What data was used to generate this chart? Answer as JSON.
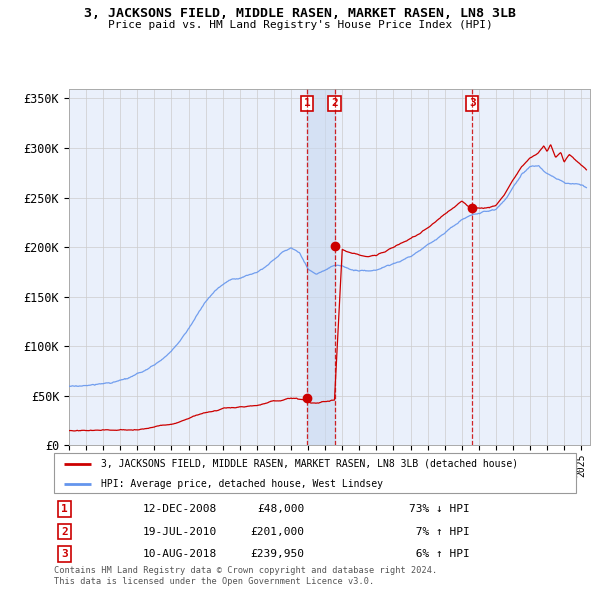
{
  "title": "3, JACKSONS FIELD, MIDDLE RASEN, MARKET RASEN, LN8 3LB",
  "subtitle": "Price paid vs. HM Land Registry's House Price Index (HPI)",
  "legend_label_red": "3, JACKSONS FIELD, MIDDLE RASEN, MARKET RASEN, LN8 3LB (detached house)",
  "legend_label_blue": "HPI: Average price, detached house, West Lindsey",
  "footer1": "Contains HM Land Registry data © Crown copyright and database right 2024.",
  "footer2": "This data is licensed under the Open Government Licence v3.0.",
  "transactions": [
    {
      "num": "1",
      "date": "12-DEC-2008",
      "price": "£48,000",
      "hpi": "73% ↓ HPI",
      "year_float": 2008.95,
      "yval": 48000
    },
    {
      "num": "2",
      "date": "19-JUL-2010",
      "price": "£201,000",
      "hpi": " 7% ↑ HPI",
      "year_float": 2010.55,
      "yval": 201000
    },
    {
      "num": "3",
      "date": "10-AUG-2018",
      "price": "£239,950",
      "hpi": " 6% ↑ HPI",
      "year_float": 2018.62,
      "yval": 239950
    }
  ],
  "hpi_color": "#6495ED",
  "red_color": "#CC0000",
  "bg_color": "#EAF0FB",
  "grid_color": "#CCCCCC",
  "ylabel_ticks": [
    "£0",
    "£50K",
    "£100K",
    "£150K",
    "£200K",
    "£250K",
    "£300K",
    "£350K"
  ],
  "ytick_values": [
    0,
    50000,
    100000,
    150000,
    200000,
    250000,
    300000,
    350000
  ],
  "ylim": [
    0,
    360000
  ],
  "xlim_start": 1995.0,
  "xlim_end": 2025.5
}
